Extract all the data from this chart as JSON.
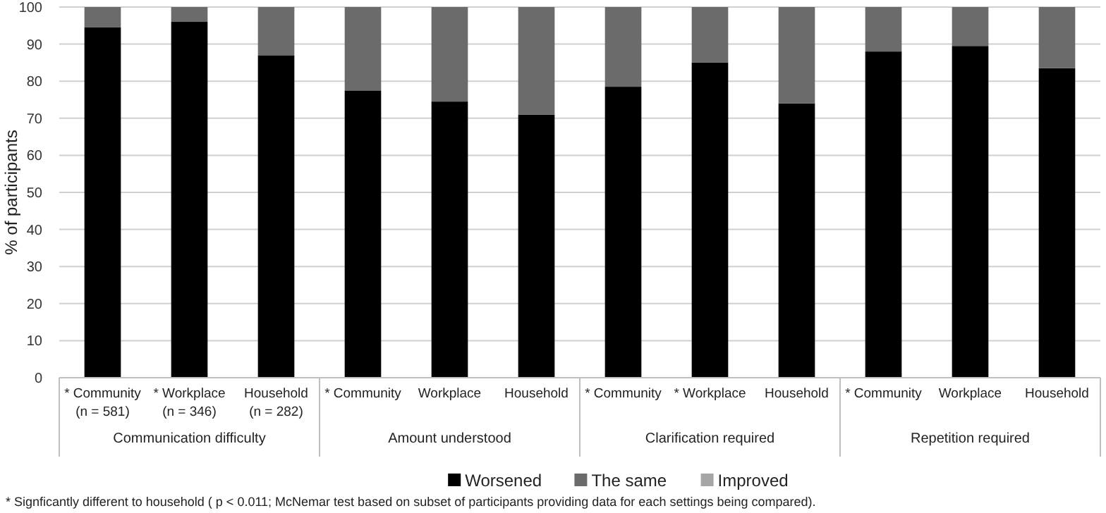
{
  "chart_data": {
    "type": "bar",
    "stacked": true,
    "ylabel": "% of participants",
    "categories": [
      "* Community\n(n = 581)",
      "* Workplace\n(n = 346)",
      "Household\n(n = 282)",
      "* Community",
      "Workplace",
      "Household",
      "* Community",
      "* Workplace",
      "Household",
      "* Community",
      "Workplace",
      "Household"
    ],
    "series": [
      {
        "name": "Worsened",
        "color": "#000000",
        "values": [
          94.5,
          96,
          87,
          77.5,
          74.5,
          71,
          78.5,
          85,
          74,
          88,
          89.5,
          83.5
        ]
      },
      {
        "name": "The same",
        "color": "#6b6b6b",
        "values": [
          5.5,
          4,
          13,
          22.5,
          25.5,
          29,
          21.5,
          15,
          26,
          12,
          10.5,
          16.5
        ]
      },
      {
        "name": "Improved",
        "color": "#a6a6a6",
        "values": [
          0,
          0,
          0,
          0,
          0,
          0,
          0,
          0,
          0,
          0,
          0,
          0
        ]
      }
    ],
    "ylim": [
      0,
      100
    ],
    "yticks": [
      0,
      10,
      20,
      30,
      40,
      50,
      60,
      70,
      80,
      90,
      100
    ],
    "grid": "y",
    "legend": "bottom",
    "annotations": [
      "Communication difficulty",
      "Amount understood",
      "Clarification required",
      "Repetition required",
      "* Signficantly different to household ( p < 0.011; McNemar test based on subset of participants providing data for each settings being compared)."
    ]
  }
}
